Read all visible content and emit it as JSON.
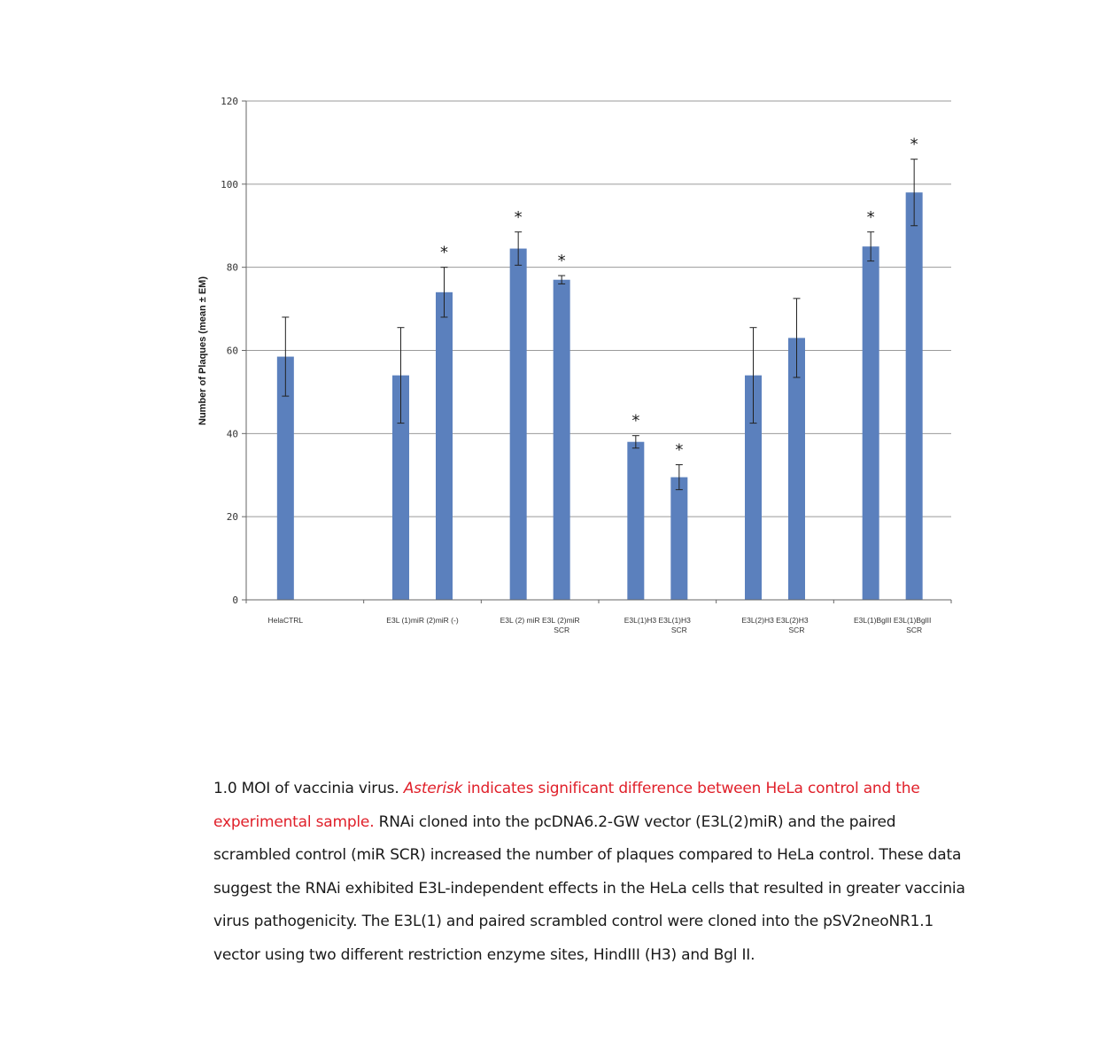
{
  "chart_data": {
    "type": "bar",
    "ylabel": "Number of Plaques (mean ± EM)",
    "xlabel": "",
    "ylim": [
      0,
      120
    ],
    "yticks": [
      "0",
      "20",
      "40",
      "60",
      "80",
      "100",
      "120"
    ],
    "grid": true,
    "color": "#5b80bd",
    "groups": [
      {
        "label": "HelaCTRL",
        "bars": [
          {
            "value": 58.5,
            "err": 9.5,
            "sig": false
          }
        ]
      },
      {
        "label": "E3L (1)miR (2)miR (-)",
        "bars": [
          {
            "value": 54,
            "err": 11.5,
            "sig": false
          },
          {
            "value": 74,
            "err": 6,
            "sig": true
          }
        ]
      },
      {
        "label": "E3L (2) miR E3L (2)miR",
        "label2": "SCR",
        "bars": [
          {
            "value": 84.5,
            "err": 4,
            "sig": true
          },
          {
            "value": 77,
            "err": 1,
            "sig": true
          }
        ]
      },
      {
        "label": "E3L(1)H3 E3L(1)H3",
        "label2": "SCR",
        "bars": [
          {
            "value": 38,
            "err": 1.5,
            "sig": true
          },
          {
            "value": 29.5,
            "err": 3,
            "sig": true
          }
        ]
      },
      {
        "label": "E3L(2)H3 E3L(2)H3",
        "label2": "SCR",
        "bars": [
          {
            "value": 54,
            "err": 11.5,
            "sig": false
          },
          {
            "value": 63,
            "err": 9.5,
            "sig": false
          }
        ]
      },
      {
        "label": "E3L(1)BglII E3L(1)BglII",
        "label2": "SCR",
        "bars": [
          {
            "value": 85,
            "err": 3.5,
            "sig": true
          },
          {
            "value": 98,
            "err": 8,
            "sig": true
          }
        ]
      }
    ],
    "asterisk": "*"
  },
  "caption": {
    "part1": "1.0 MOI of vaccinia virus. ",
    "part2_italic": "Asterisk",
    "part3_red": " indicates significant difference between HeLa control and the experimental sample.",
    "part4": "  RNAi cloned into the pcDNA6.2-GW vector (E3L(2)miR) and the paired scrambled control (miR SCR) increased the number of plaques compared to HeLa control. These data suggest the RNAi exhibited E3L-independent effects in the HeLa cells that resulted in greater vaccinia virus pathogenicity. The E3L(1) and paired scrambled control were cloned into the pSV2neoNR1.1 vector using two different restriction enzyme sites, HindIII (H3) and Bgl II."
  }
}
